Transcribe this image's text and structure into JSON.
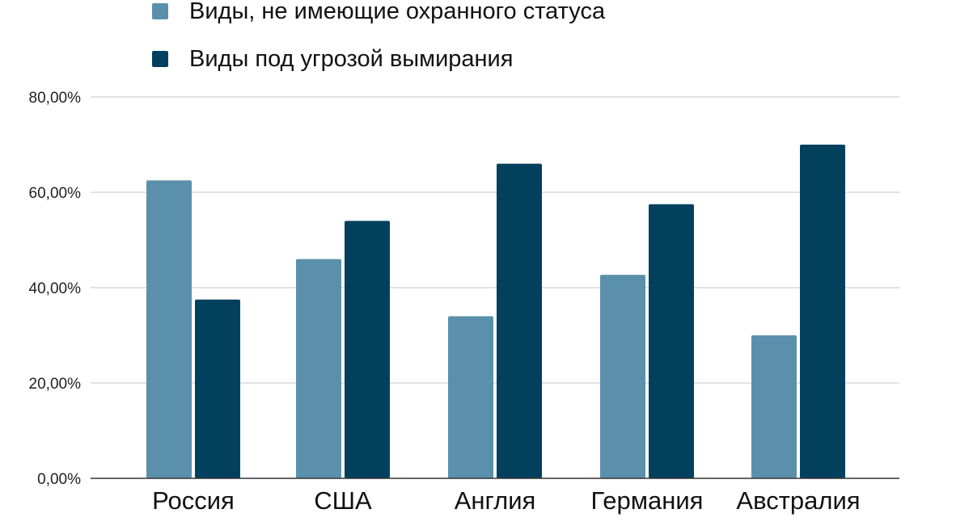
{
  "chart_data": {
    "type": "bar",
    "title": "",
    "xlabel": "",
    "ylabel": "",
    "categories": [
      "Россия",
      "США",
      "Англия",
      "Германия",
      "Австралия"
    ],
    "series": [
      {
        "name": "Виды, не имеющие охранного статуса",
        "color": "#5b90ad",
        "values": [
          62.5,
          46.0,
          34.0,
          42.7,
          30.0
        ]
      },
      {
        "name": "Виды под угрозой вымирания",
        "color": "#02405e",
        "values": [
          37.5,
          54.0,
          66.0,
          57.5,
          70.0
        ]
      }
    ],
    "ylim": [
      0,
      80
    ],
    "yticks": [
      0,
      20,
      40,
      60,
      80
    ],
    "ytick_labels": [
      "0,00%",
      "20,00%",
      "40,00%",
      "60,00%",
      "80,00%"
    ],
    "grid": true,
    "legend_position": "top-left"
  }
}
